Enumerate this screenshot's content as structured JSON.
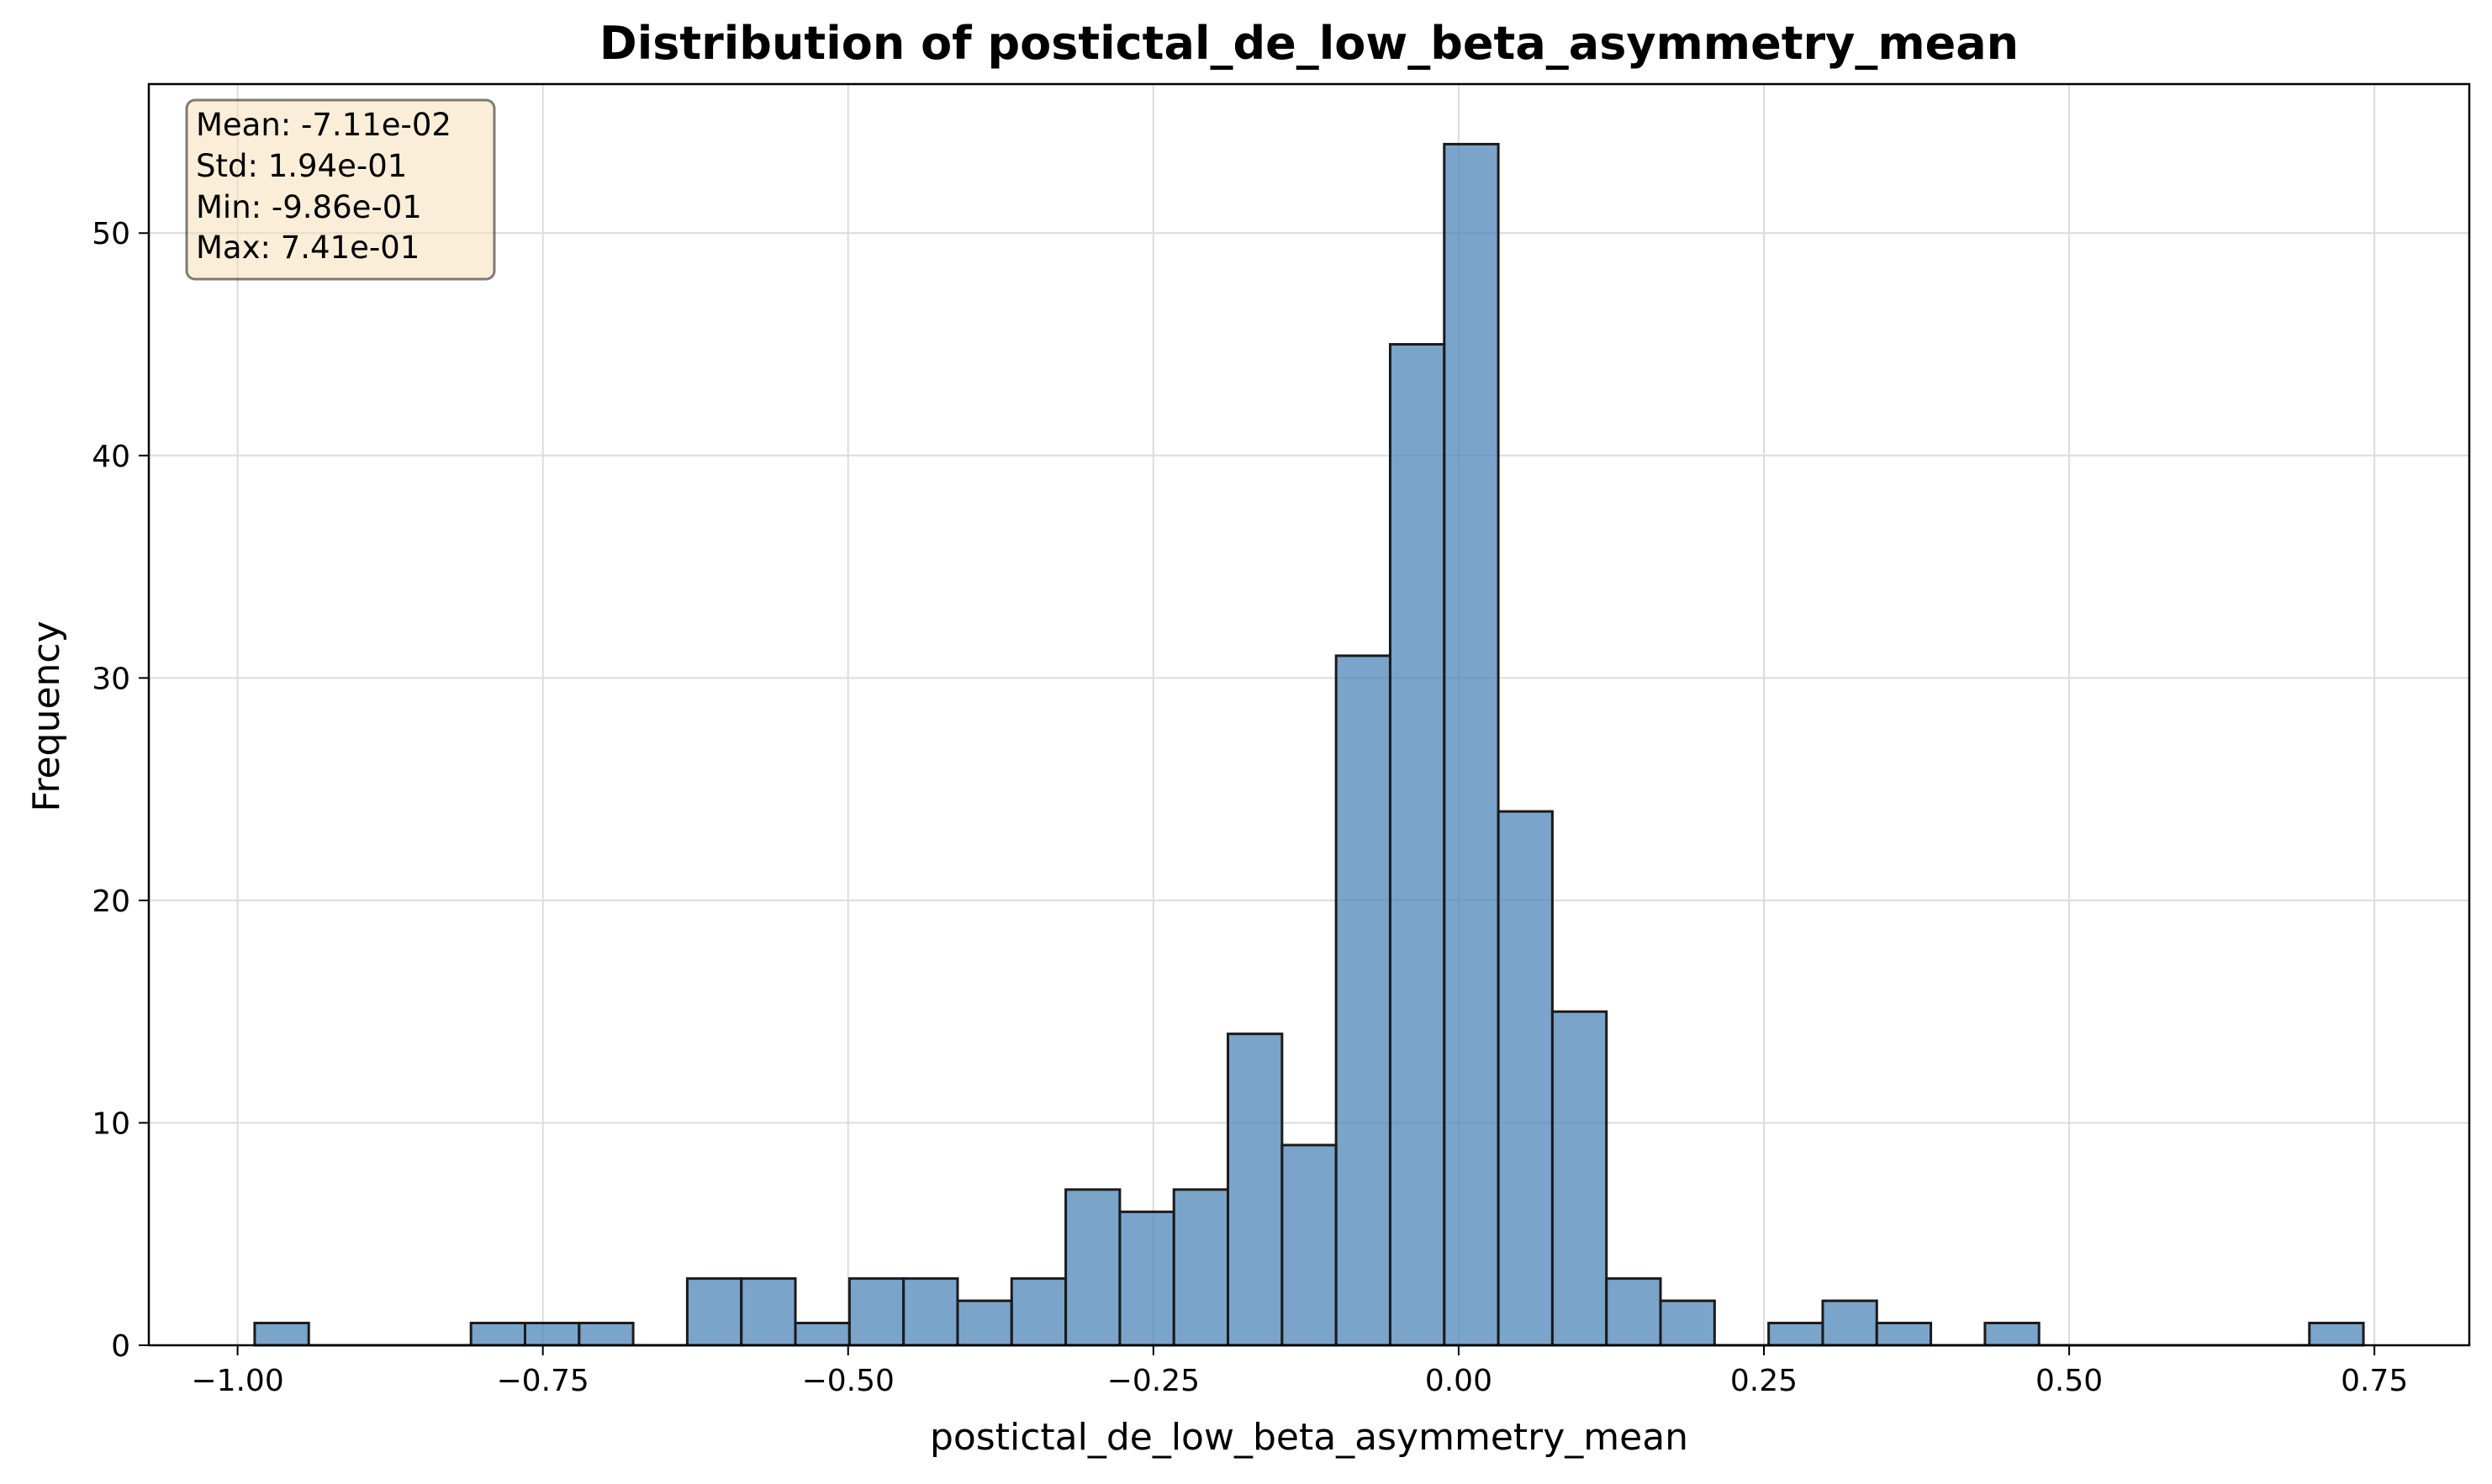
{
  "chart_data": {
    "type": "bar",
    "title": "Distribution of postictal_de_low_beta_asymmetry_mean",
    "xlabel": "postictal_de_low_beta_asymmetry_mean",
    "ylabel": "Frequency",
    "xlim": [
      -1.0727,
      0.8277
    ],
    "ylim": [
      0,
      56.7
    ],
    "xticks": [
      -1.0,
      -0.75,
      -0.5,
      -0.25,
      0.0,
      0.25,
      0.5,
      0.75
    ],
    "xtick_labels": [
      "−1.00",
      "−0.75",
      "−0.50",
      "−0.25",
      "0.00",
      "0.25",
      "0.50",
      "0.75"
    ],
    "yticks": [
      0,
      10,
      20,
      30,
      40,
      50
    ],
    "ytick_labels": [
      "0",
      "10",
      "20",
      "30",
      "40",
      "50"
    ],
    "grid": true,
    "bar_color": "#4f86ba",
    "bar_alpha": 0.75,
    "edge_color": "#1b1b1b",
    "bins": {
      "start": -0.986,
      "end": 0.741,
      "counts": [
        1,
        0,
        0,
        0,
        1,
        1,
        1,
        0,
        3,
        3,
        1,
        3,
        3,
        2,
        3,
        7,
        6,
        7,
        14,
        9,
        31,
        45,
        54,
        24,
        15,
        3,
        2,
        0,
        1,
        2,
        1,
        0,
        1,
        0,
        0,
        0,
        0,
        0,
        1
      ]
    },
    "stats_box": {
      "lines": [
        "Mean: -7.11e-02",
        "Std: 1.94e-01",
        "Min: -9.86e-01",
        "Max: 7.41e-01"
      ],
      "facecolor": "#f5deb3",
      "alpha": 0.5
    }
  }
}
